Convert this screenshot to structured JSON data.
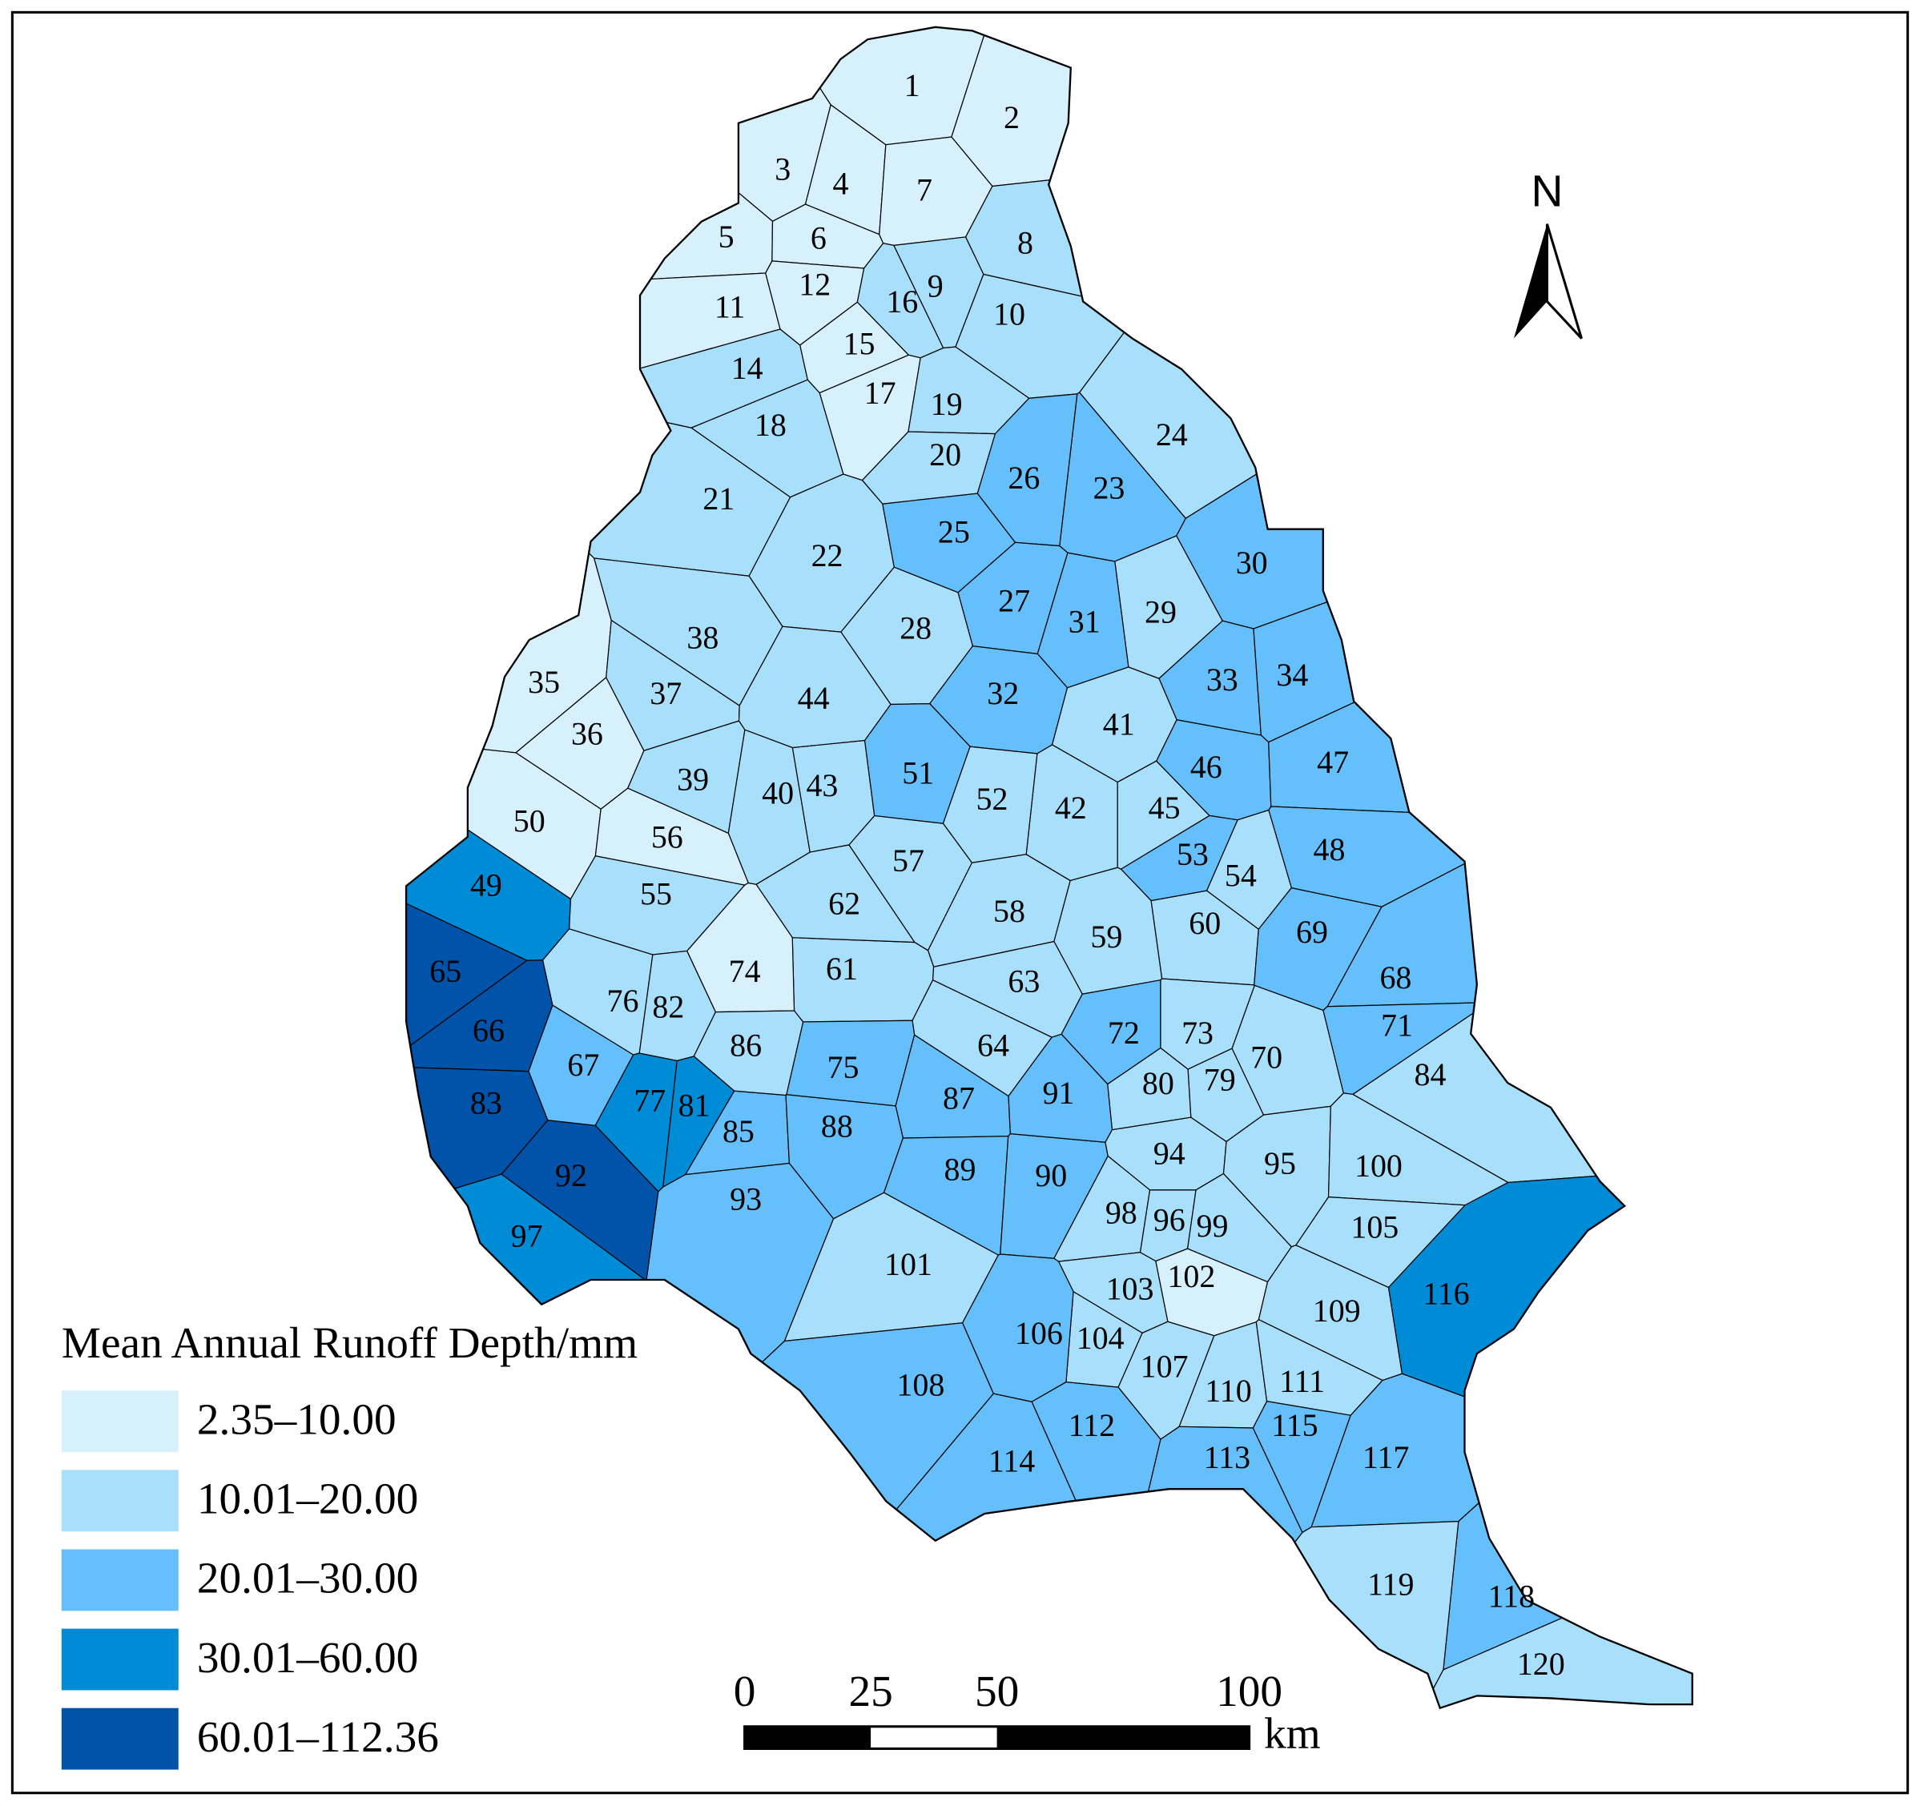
{
  "map": {
    "legend": {
      "title": "Mean Annual Runoff Depth/mm",
      "items": [
        {
          "label": "2.35–10.00",
          "color": "#d6f1fc"
        },
        {
          "label": "10.01–20.00",
          "color": "#a8e0fb"
        },
        {
          "label": "20.01–30.00",
          "color": "#64bffa"
        },
        {
          "label": "30.01–60.00",
          "color": "#008bd6"
        },
        {
          "label": "60.01–112.36",
          "color": "#0053a9"
        }
      ]
    },
    "north": "N",
    "scale_bar": {
      "ticks": [
        0,
        25,
        50,
        100
      ],
      "unit": "km"
    },
    "basins": [
      {
        "label": "1",
        "color": "#d6f1fc"
      },
      {
        "label": "2",
        "color": "#d6f1fc"
      },
      {
        "label": "3",
        "color": "#d6f1fc"
      },
      {
        "label": "4",
        "color": "#d6f1fc"
      },
      {
        "label": "5",
        "color": "#d6f1fc"
      },
      {
        "label": "6",
        "color": "#d6f1fc"
      },
      {
        "label": "7",
        "color": "#d6f1fc"
      },
      {
        "label": "8",
        "color": "#a8e0fb"
      },
      {
        "label": "9",
        "color": "#a8e0fb"
      },
      {
        "label": "10",
        "color": "#a8e0fb"
      },
      {
        "label": "11",
        "color": "#d6f1fc"
      },
      {
        "label": "12",
        "color": "#d6f1fc"
      },
      {
        "label": "14",
        "color": "#a8e0fb"
      },
      {
        "label": "15",
        "color": "#d6f1fc"
      },
      {
        "label": "16",
        "color": "#a8e0fb"
      },
      {
        "label": "17",
        "color": "#d6f1fc"
      },
      {
        "label": "18",
        "color": "#a8e0fb"
      },
      {
        "label": "19",
        "color": "#a8e0fb"
      },
      {
        "label": "20",
        "color": "#a8e0fb"
      },
      {
        "label": "21",
        "color": "#a8e0fb"
      },
      {
        "label": "22",
        "color": "#a8e0fb"
      },
      {
        "label": "23",
        "color": "#64bffa"
      },
      {
        "label": "24",
        "color": "#a8e0fb"
      },
      {
        "label": "25",
        "color": "#64bffa"
      },
      {
        "label": "26",
        "color": "#64bffa"
      },
      {
        "label": "27",
        "color": "#64bffa"
      },
      {
        "label": "28",
        "color": "#a8e0fb"
      },
      {
        "label": "29",
        "color": "#a8e0fb"
      },
      {
        "label": "30",
        "color": "#64bffa"
      },
      {
        "label": "31",
        "color": "#64bffa"
      },
      {
        "label": "32",
        "color": "#64bffa"
      },
      {
        "label": "33",
        "color": "#64bffa"
      },
      {
        "label": "34",
        "color": "#64bffa"
      },
      {
        "label": "35",
        "color": "#d6f1fc"
      },
      {
        "label": "36",
        "color": "#d6f1fc"
      },
      {
        "label": "37",
        "color": "#a8e0fb"
      },
      {
        "label": "38",
        "color": "#a8e0fb"
      },
      {
        "label": "39",
        "color": "#a8e0fb"
      },
      {
        "label": "40",
        "color": "#a8e0fb"
      },
      {
        "label": "41",
        "color": "#a8e0fb"
      },
      {
        "label": "42",
        "color": "#a8e0fb"
      },
      {
        "label": "43",
        "color": "#a8e0fb"
      },
      {
        "label": "44",
        "color": "#a8e0fb"
      },
      {
        "label": "45",
        "color": "#a8e0fb"
      },
      {
        "label": "46",
        "color": "#64bffa"
      },
      {
        "label": "47",
        "color": "#64bffa"
      },
      {
        "label": "48",
        "color": "#64bffa"
      },
      {
        "label": "49",
        "color": "#008bd6"
      },
      {
        "label": "50",
        "color": "#d6f1fc"
      },
      {
        "label": "51",
        "color": "#64bffa"
      },
      {
        "label": "52",
        "color": "#a8e0fb"
      },
      {
        "label": "53",
        "color": "#64bffa"
      },
      {
        "label": "54",
        "color": "#a8e0fb"
      },
      {
        "label": "55",
        "color": "#a8e0fb"
      },
      {
        "label": "56",
        "color": "#d6f1fc"
      },
      {
        "label": "57",
        "color": "#a8e0fb"
      },
      {
        "label": "58",
        "color": "#a8e0fb"
      },
      {
        "label": "59",
        "color": "#a8e0fb"
      },
      {
        "label": "60",
        "color": "#a8e0fb"
      },
      {
        "label": "61",
        "color": "#a8e0fb"
      },
      {
        "label": "62",
        "color": "#a8e0fb"
      },
      {
        "label": "63",
        "color": "#a8e0fb"
      },
      {
        "label": "64",
        "color": "#a8e0fb"
      },
      {
        "label": "65",
        "color": "#0053a9"
      },
      {
        "label": "66",
        "color": "#0053a9"
      },
      {
        "label": "67",
        "color": "#64bffa"
      },
      {
        "label": "68",
        "color": "#64bffa"
      },
      {
        "label": "69",
        "color": "#64bffa"
      },
      {
        "label": "70",
        "color": "#a8e0fb"
      },
      {
        "label": "71",
        "color": "#64bffa"
      },
      {
        "label": "72",
        "color": "#64bffa"
      },
      {
        "label": "73",
        "color": "#a8e0fb"
      },
      {
        "label": "74",
        "color": "#d6f1fc"
      },
      {
        "label": "75",
        "color": "#64bffa"
      },
      {
        "label": "76",
        "color": "#a8e0fb"
      },
      {
        "label": "77",
        "color": "#008bd6"
      },
      {
        "label": "79",
        "color": "#a8e0fb"
      },
      {
        "label": "80",
        "color": "#a8e0fb"
      },
      {
        "label": "81",
        "color": "#008bd6"
      },
      {
        "label": "82",
        "color": "#a8e0fb"
      },
      {
        "label": "83",
        "color": "#0053a9"
      },
      {
        "label": "84",
        "color": "#a8e0fb"
      },
      {
        "label": "85",
        "color": "#64bffa"
      },
      {
        "label": "86",
        "color": "#a8e0fb"
      },
      {
        "label": "87",
        "color": "#64bffa"
      },
      {
        "label": "88",
        "color": "#64bffa"
      },
      {
        "label": "89",
        "color": "#64bffa"
      },
      {
        "label": "90",
        "color": "#64bffa"
      },
      {
        "label": "91",
        "color": "#64bffa"
      },
      {
        "label": "92",
        "color": "#0053a9"
      },
      {
        "label": "93",
        "color": "#64bffa"
      },
      {
        "label": "94",
        "color": "#a8e0fb"
      },
      {
        "label": "95",
        "color": "#a8e0fb"
      },
      {
        "label": "96",
        "color": "#a8e0fb"
      },
      {
        "label": "97",
        "color": "#008bd6"
      },
      {
        "label": "98",
        "color": "#a8e0fb"
      },
      {
        "label": "99",
        "color": "#a8e0fb"
      },
      {
        "label": "100",
        "color": "#a8e0fb"
      },
      {
        "label": "101",
        "color": "#a8e0fb"
      },
      {
        "label": "102",
        "color": "#d6f1fc"
      },
      {
        "label": "103",
        "color": "#a8e0fb"
      },
      {
        "label": "104",
        "color": "#a8e0fb"
      },
      {
        "label": "105",
        "color": "#a8e0fb"
      },
      {
        "label": "106",
        "color": "#64bffa"
      },
      {
        "label": "107",
        "color": "#a8e0fb"
      },
      {
        "label": "108",
        "color": "#64bffa"
      },
      {
        "label": "109",
        "color": "#a8e0fb"
      },
      {
        "label": "110",
        "color": "#a8e0fb"
      },
      {
        "label": "111",
        "color": "#a8e0fb"
      },
      {
        "label": "112",
        "color": "#64bffa"
      },
      {
        "label": "113",
        "color": "#64bffa"
      },
      {
        "label": "114",
        "color": "#64bffa"
      },
      {
        "label": "115",
        "color": "#64bffa"
      },
      {
        "label": "116",
        "color": "#008bd6"
      },
      {
        "label": "117",
        "color": "#64bffa"
      },
      {
        "label": "118",
        "color": "#64bffa"
      },
      {
        "label": "119",
        "color": "#a8e0fb"
      },
      {
        "label": "120",
        "color": "#a8e0fb"
      }
    ]
  }
}
